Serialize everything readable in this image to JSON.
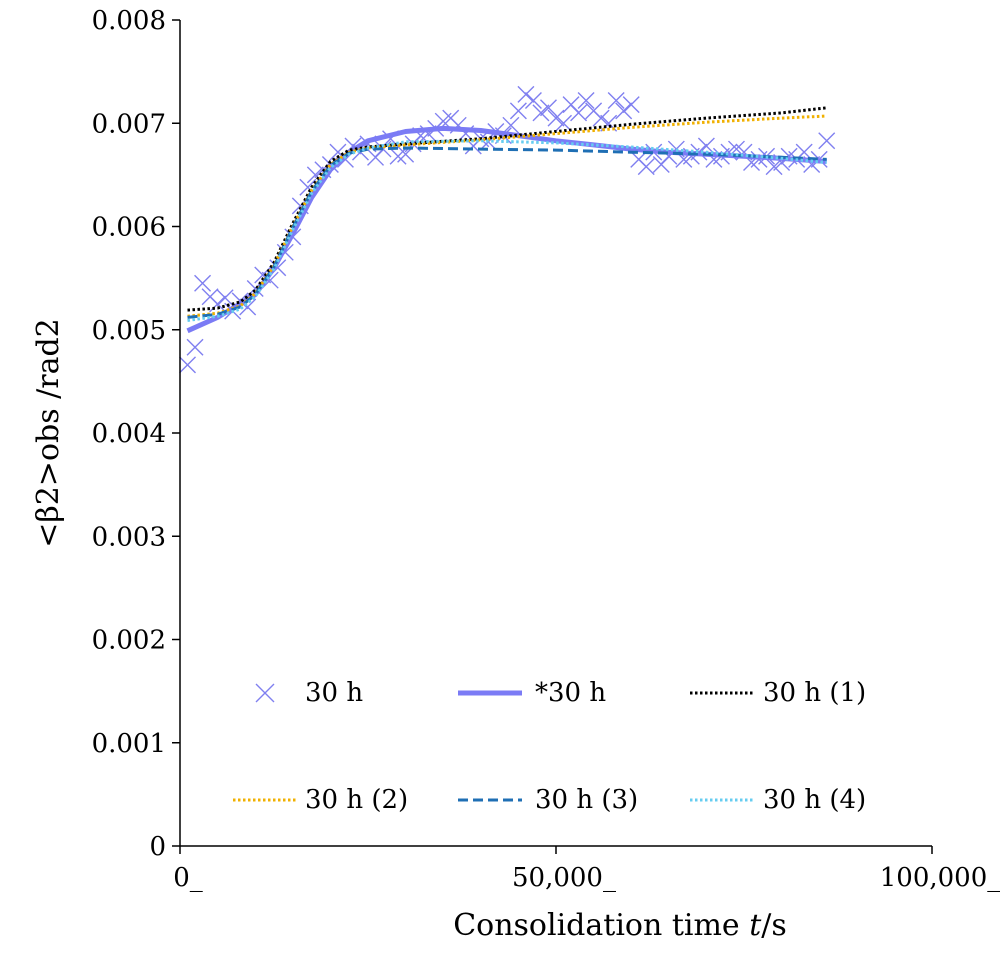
{
  "chart_data": {
    "type": "scatter",
    "title": "",
    "xlabel_prefix": "Consolidation time ",
    "xlabel_var": "t",
    "xlabel_suffix": "/s",
    "ylabel": "<β2>obs /rad2",
    "xlim": [
      0,
      100000
    ],
    "ylim": [
      0,
      0.008
    ],
    "x_ticks": [
      0,
      50000,
      100000
    ],
    "x_tick_labels": [
      "0_",
      "50,000_",
      "100,000_"
    ],
    "y_ticks": [
      0,
      0.001,
      0.002,
      0.003,
      0.004,
      0.005,
      0.006,
      0.007,
      0.008
    ],
    "y_tick_labels": [
      "0",
      "0.001",
      "0.002",
      "0.003",
      "0.004",
      "0.005",
      "0.006",
      "0.007",
      "0.008"
    ],
    "grid": false,
    "legend_position": "bottom-inside",
    "series": [
      {
        "name": "30 h",
        "kind": "scatter",
        "marker": "x",
        "color": "#8080f0",
        "x": [
          1000,
          2000,
          3000,
          4000,
          5000,
          6000,
          7000,
          8000,
          9000,
          10000,
          11000,
          12000,
          13000,
          14000,
          15000,
          16000,
          17000,
          18000,
          19000,
          20000,
          21000,
          22000,
          23000,
          24000,
          25000,
          26000,
          27000,
          28000,
          29000,
          30000,
          31000,
          32000,
          33000,
          34000,
          35000,
          36000,
          37000,
          38000,
          39000,
          40000,
          41000,
          42000,
          43000,
          44000,
          45000,
          46000,
          47000,
          48000,
          49000,
          50000,
          51000,
          52000,
          53000,
          54000,
          55000,
          56000,
          57000,
          58000,
          59000,
          60000,
          61000,
          62000,
          63000,
          64000,
          65000,
          66000,
          67000,
          68000,
          69000,
          70000,
          71000,
          72000,
          73000,
          74000,
          75000,
          76000,
          77000,
          78000,
          79000,
          80000,
          81000,
          82000,
          83000,
          84000,
          85000,
          86000
        ],
        "y": [
          0.00466,
          0.00483,
          0.00545,
          0.00532,
          0.00525,
          0.00531,
          0.00518,
          0.00528,
          0.00522,
          0.0054,
          0.00553,
          0.00548,
          0.0056,
          0.00575,
          0.0059,
          0.0062,
          0.00638,
          0.0065,
          0.00655,
          0.0066,
          0.00672,
          0.00665,
          0.00678,
          0.00672,
          0.0068,
          0.00667,
          0.00675,
          0.00685,
          0.00668,
          0.0067,
          0.0068,
          0.00688,
          0.0069,
          0.00695,
          0.00702,
          0.00705,
          0.00698,
          0.0069,
          0.00678,
          0.00685,
          0.00682,
          0.00692,
          0.00688,
          0.00698,
          0.00712,
          0.00728,
          0.00722,
          0.0071,
          0.00715,
          0.00705,
          0.007,
          0.00718,
          0.0071,
          0.00722,
          0.00712,
          0.00705,
          0.007,
          0.00722,
          0.00712,
          0.00718,
          0.00665,
          0.00658,
          0.00672,
          0.0066,
          0.00668,
          0.00675,
          0.00665,
          0.00668,
          0.00672,
          0.00678,
          0.00665,
          0.00668,
          0.00672,
          0.00675,
          0.00672,
          0.00662,
          0.00665,
          0.00668,
          0.00658,
          0.00662,
          0.00668,
          0.00665,
          0.00672,
          0.0066,
          0.00665,
          0.00683
        ]
      },
      {
        "name": "*30 h",
        "kind": "line",
        "color": "#7b7bf5",
        "dash": "solid",
        "width": 5,
        "x": [
          1000,
          5000,
          10000,
          12500,
          15000,
          17500,
          20000,
          22500,
          25000,
          30000,
          35000,
          40000,
          45000,
          50000,
          55000,
          60000,
          65000,
          70000,
          75000,
          80000,
          86000
        ],
        "y": [
          0.00499,
          0.00512,
          0.00534,
          0.0056,
          0.00593,
          0.00628,
          0.00655,
          0.00672,
          0.00683,
          0.00692,
          0.00695,
          0.00693,
          0.00688,
          0.00683,
          0.00679,
          0.00675,
          0.00672,
          0.0067,
          0.00668,
          0.00666,
          0.00663
        ]
      },
      {
        "name": "30 h (1)",
        "kind": "line",
        "color": "#000000",
        "dash": "dot",
        "width": 3,
        "x": [
          1000,
          5000,
          8000,
          10000,
          12500,
          15000,
          17500,
          20000,
          22500,
          25000,
          30000,
          40000,
          50000,
          60000,
          70000,
          80000,
          86000
        ],
        "y": [
          0.00519,
          0.00521,
          0.00527,
          0.00538,
          0.00565,
          0.00603,
          0.00638,
          0.00663,
          0.00674,
          0.00677,
          0.0068,
          0.00685,
          0.00692,
          0.00699,
          0.00705,
          0.0071,
          0.00715
        ]
      },
      {
        "name": "30 h (2)",
        "kind": "line",
        "color": "#f0b000",
        "dash": "dot",
        "width": 3,
        "x": [
          1000,
          5000,
          8000,
          10000,
          12500,
          15000,
          17500,
          20000,
          22500,
          25000,
          30000,
          40000,
          50000,
          60000,
          70000,
          80000,
          86000
        ],
        "y": [
          0.00513,
          0.00516,
          0.00523,
          0.00535,
          0.00562,
          0.006,
          0.00635,
          0.0066,
          0.00672,
          0.00676,
          0.00679,
          0.00684,
          0.0069,
          0.00696,
          0.00701,
          0.00705,
          0.00707
        ]
      },
      {
        "name": "30 h (3)",
        "kind": "line",
        "color": "#1f6fb4",
        "dash": "dash",
        "width": 3,
        "x": [
          1000,
          5000,
          8000,
          10000,
          12500,
          15000,
          17500,
          20000,
          22500,
          25000,
          30000,
          40000,
          50000,
          60000,
          70000,
          80000,
          86000
        ],
        "y": [
          0.00512,
          0.00515,
          0.00522,
          0.00534,
          0.00561,
          0.00599,
          0.00634,
          0.00659,
          0.00671,
          0.00675,
          0.00676,
          0.00675,
          0.00674,
          0.00672,
          0.0067,
          0.00667,
          0.00665
        ]
      },
      {
        "name": "30 h (4)",
        "kind": "line",
        "color": "#66ccf0",
        "dash": "dot",
        "width": 3,
        "x": [
          1000,
          5000,
          8000,
          10000,
          12500,
          15000,
          17500,
          20000,
          22500,
          25000,
          30000,
          40000,
          50000,
          60000,
          70000,
          80000,
          86000
        ],
        "y": [
          0.00509,
          0.00513,
          0.0052,
          0.00532,
          0.00559,
          0.00597,
          0.00632,
          0.00657,
          0.0067,
          0.00676,
          0.00682,
          0.00683,
          0.00681,
          0.00677,
          0.00672,
          0.00666,
          0.00662
        ]
      }
    ]
  }
}
